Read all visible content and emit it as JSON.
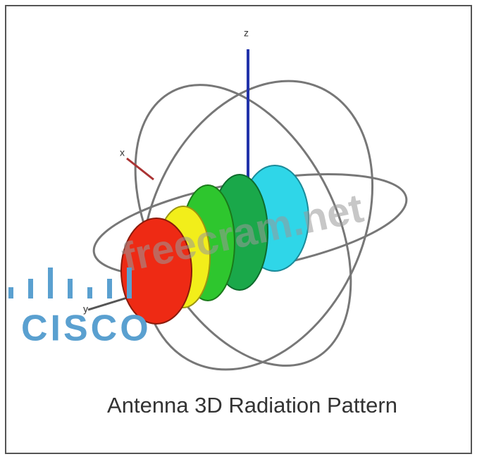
{
  "caption": "Antenna 3D Radiation Pattern",
  "watermark": "freecram.net",
  "logo": "CISCO",
  "axes": {
    "z": "z",
    "x": "x",
    "y": "y"
  }
}
